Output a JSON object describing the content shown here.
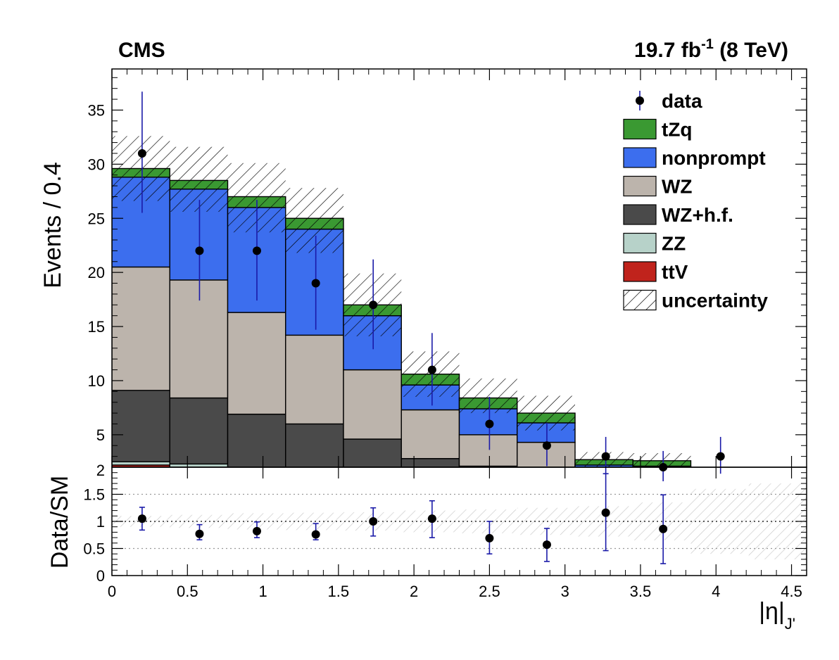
{
  "header": {
    "left": "CMS",
    "right_pre": "19.7 fb",
    "right_sup": "-1",
    "right_post": " (8 TeV)"
  },
  "chart_data": [
    {
      "type": "bar",
      "stacked": true,
      "ylabel": "Events / 0.4",
      "ylim": [
        2,
        38.8
      ],
      "xlim": [
        0,
        4.6
      ],
      "bin_edges": [
        0,
        0.3833,
        0.7667,
        1.15,
        1.5333,
        1.9167,
        2.3,
        2.6833,
        3.0667,
        3.45,
        3.8333,
        4.2167,
        4.6
      ],
      "y_ticks": [
        "5",
        "10",
        "15",
        "20",
        "25",
        "30",
        "35"
      ],
      "y_tick_values": [
        5,
        10,
        15,
        20,
        25,
        30,
        35
      ],
      "bottom_label": "2",
      "stack_order": [
        "ttV",
        "ZZ",
        "WZ+h.f.",
        "WZ",
        "nonprompt",
        "tZq"
      ],
      "series": [
        {
          "name": "ttV",
          "color": "#c0231c",
          "values": [
            2.2,
            2.0,
            1.6,
            1.4,
            1.3,
            0.5,
            0.4,
            0.1,
            0.05,
            0.05,
            0.0,
            0.0
          ]
        },
        {
          "name": "ZZ",
          "color": "#b7d2c9",
          "values": [
            0.3,
            0.3,
            0.2,
            0.2,
            0.2,
            0.1,
            0.1,
            0.1,
            0.05,
            0.05,
            0.0,
            0.0
          ]
        },
        {
          "name": "WZ+h.f.",
          "color": "#4a4a4a",
          "values": [
            6.6,
            6.1,
            5.1,
            4.4,
            3.1,
            2.2,
            1.6,
            1.5,
            0.6,
            0.4,
            0.3,
            0.1
          ]
        },
        {
          "name": "WZ",
          "color": "#bcb4ac",
          "values": [
            11.4,
            10.9,
            9.4,
            8.2,
            6.4,
            4.5,
            2.9,
            2.6,
            1.2,
            0.9,
            0.6,
            0.2
          ]
        },
        {
          "name": "nonprompt",
          "color": "#3c6eee",
          "values": [
            8.3,
            8.4,
            9.7,
            9.8,
            5.0,
            2.3,
            2.4,
            1.8,
            0.3,
            0.7,
            0.0,
            0.0
          ]
        },
        {
          "name": "tZq",
          "color": "#3a9932",
          "values": [
            0.8,
            0.8,
            1.0,
            1.0,
            1.0,
            1.0,
            1.0,
            0.9,
            0.5,
            0.5,
            0.2,
            0.0
          ]
        }
      ],
      "uncertainty": {
        "name": "uncertainty",
        "up": [
          32.6,
          31.6,
          30.1,
          27.8,
          19.9,
          12.7,
          10.2,
          8.6,
          3.4,
          3.3,
          1.4,
          0.5
        ],
        "down": [
          26.6,
          25.6,
          23.7,
          21.8,
          14.1,
          8.5,
          7.0,
          5.4,
          2.0,
          1.9,
          0.8,
          0.2
        ]
      },
      "data": {
        "name": "data",
        "x": [
          0.2,
          0.58,
          0.96,
          1.35,
          1.73,
          2.12,
          2.5,
          2.88,
          3.27,
          3.65,
          4.03
        ],
        "y": [
          31,
          22,
          22,
          19,
          17,
          11,
          6,
          4,
          3,
          2,
          3
        ],
        "err_up": [
          5.7,
          4.7,
          4.7,
          4.4,
          4.2,
          3.4,
          2.5,
          2.1,
          1.8,
          1.5,
          1.8
        ],
        "err_down": [
          5.5,
          4.6,
          4.6,
          4.3,
          4.1,
          3.3,
          2.4,
          1.9,
          1.6,
          1.3,
          1.6
        ]
      },
      "legend": [
        "data",
        "tZq",
        "nonprompt",
        "WZ",
        "WZ+h.f.",
        "ZZ",
        "ttV",
        "uncertainty"
      ],
      "legend_position": "top-right"
    },
    {
      "type": "scatter",
      "ylabel": "Data/SM",
      "xlabel": "|η|J'",
      "xlabel_main": "|η|",
      "xlabel_sub": "J'",
      "ylim": [
        0,
        2
      ],
      "xlim": [
        0,
        4.6
      ],
      "y_ticks": [
        "0",
        "0.5",
        "1",
        "1.5"
      ],
      "y_tick_values": [
        0,
        0.5,
        1,
        1.5
      ],
      "x_ticks": [
        "0",
        "0.5",
        "1",
        "1.5",
        "2",
        "2.5",
        "3",
        "3.5",
        "4",
        "4.5"
      ],
      "x_tick_values": [
        0,
        0.5,
        1,
        1.5,
        2,
        2.5,
        3,
        3.5,
        4,
        4.5
      ],
      "reference_lines": [
        0.5,
        1,
        1.5
      ],
      "x": [
        0.2,
        0.58,
        0.96,
        1.35,
        1.73,
        2.12,
        2.5,
        2.88,
        3.27,
        3.65
      ],
      "y": [
        1.05,
        0.77,
        0.82,
        0.76,
        1.0,
        1.05,
        0.69,
        0.57,
        1.16,
        0.86
      ],
      "err_up": [
        0.21,
        0.17,
        0.17,
        0.2,
        0.25,
        0.33,
        0.31,
        0.3,
        0.72,
        0.63
      ],
      "err_down": [
        0.21,
        0.11,
        0.12,
        0.1,
        0.27,
        0.35,
        0.29,
        0.31,
        0.7,
        0.64
      ],
      "band_up": [
        1.1,
        1.12,
        1.15,
        1.16,
        1.17,
        1.2,
        1.22,
        1.25,
        1.28,
        1.35,
        1.6,
        1.7
      ],
      "band_down": [
        0.9,
        0.88,
        0.85,
        0.84,
        0.83,
        0.8,
        0.78,
        0.75,
        0.72,
        0.65,
        0.4,
        0.3
      ]
    }
  ]
}
